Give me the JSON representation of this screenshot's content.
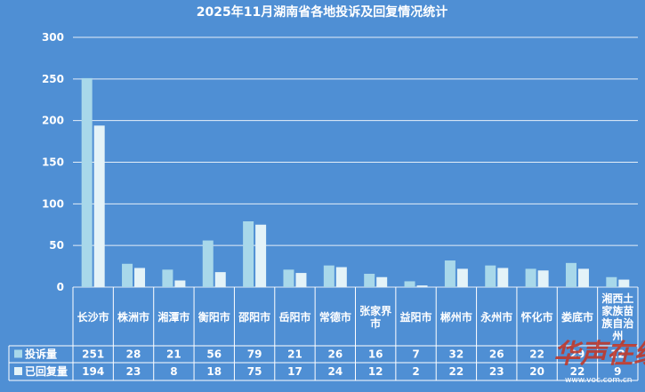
{
  "chart_data": {
    "type": "bar",
    "title": "2025年11月湖南省各地投诉及回复情况统计",
    "categories": [
      "长沙市",
      "株洲市",
      "湘潭市",
      "衡阳市",
      "邵阳市",
      "岳阳市",
      "常德市",
      "张家界市",
      "益阳市",
      "郴州市",
      "永州市",
      "怀化市",
      "娄底市",
      "湘西土家族苗族自治州"
    ],
    "series": [
      {
        "name": "投诉量",
        "values": [
          251,
          28,
          21,
          56,
          79,
          21,
          26,
          16,
          7,
          32,
          26,
          22,
          29,
          12
        ]
      },
      {
        "name": "已回复量",
        "values": [
          194,
          23,
          8,
          18,
          75,
          17,
          24,
          12,
          2,
          22,
          23,
          20,
          22,
          9
        ]
      }
    ],
    "ylim": [
      0,
      300
    ],
    "yticks": [
      0,
      50,
      100,
      150,
      200,
      250,
      300
    ],
    "grid": true,
    "legend": "table-left",
    "colors": {
      "series1": "#a8d8ea",
      "series2": "#e4f3f8",
      "background": "#4f8fd4",
      "grid": "#ffffff"
    }
  },
  "watermark": {
    "text": "华声在线",
    "url": "www.voc.com.cn"
  }
}
